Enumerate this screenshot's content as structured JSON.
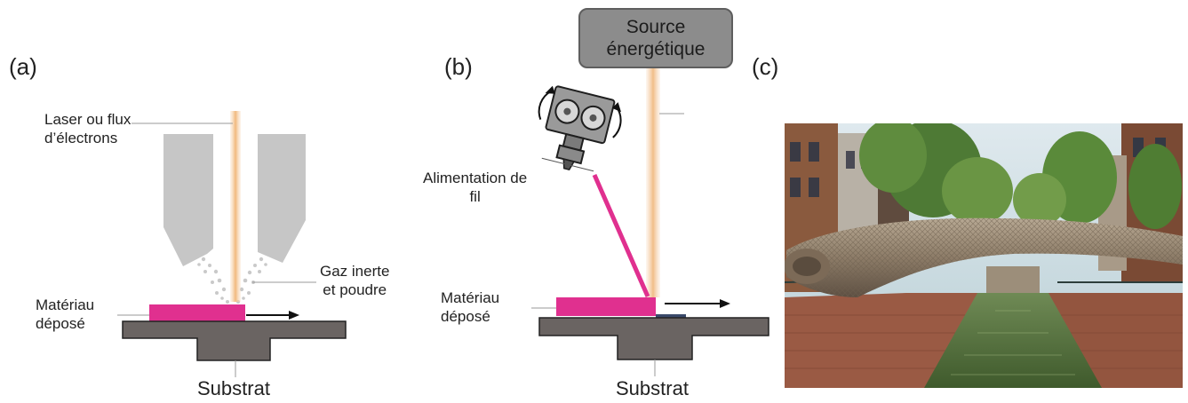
{
  "panels": {
    "a": {
      "label": "(a)",
      "beam_label_line1": "Laser ou flux",
      "beam_label_line2": "d’électrons",
      "gas_label_line1": "Gaz inerte",
      "gas_label_line2": "et poudre",
      "deposit_label_line1": "Matériau",
      "deposit_label_line2": "déposé",
      "substrate_label": "Substrat"
    },
    "b": {
      "label": "(b)",
      "source_line1": "Source",
      "source_line2": "énergétique",
      "wire_label_line1": "Alimentation de",
      "wire_label_line2": "fil",
      "deposit_label_line1": "Matériau",
      "deposit_label_line2": "déposé",
      "substrate_label": "Substrat"
    },
    "c": {
      "label": "(c)"
    }
  },
  "colors": {
    "deposit": "#e0308f",
    "substrate": "#6a6462",
    "beam": "#f4c99a",
    "nozzle": "#c8c8c8",
    "source_box": "#8c8c8c"
  }
}
